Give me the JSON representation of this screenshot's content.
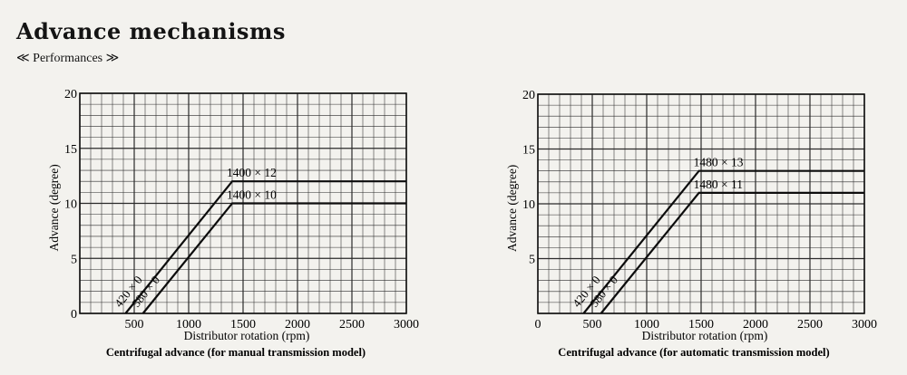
{
  "page": {
    "title": "Advance mechanisms",
    "subtitle": "≪ Performances ≫"
  },
  "chart_data": [
    {
      "type": "line",
      "caption": "Centrifugal advance (for manual transmission model)",
      "xlabel": "Distributor rotation (rpm)",
      "ylabel": "Advance (degree)",
      "xlim": [
        0,
        3000
      ],
      "ylim": [
        0,
        20
      ],
      "xticks": [
        500,
        1000,
        1500,
        2000,
        2500,
        3000
      ],
      "yticks": [
        0,
        5,
        10,
        15,
        20
      ],
      "grid": true,
      "series": [
        {
          "x": [
            420,
            1400,
            3000
          ],
          "y": [
            0,
            12,
            12
          ]
        },
        {
          "x": [
            580,
            1400,
            3000
          ],
          "y": [
            0,
            10,
            10
          ]
        }
      ],
      "annotations": [
        {
          "text": "420 × 0",
          "x": 420,
          "y": 0,
          "kind": "start"
        },
        {
          "text": "580 × 0",
          "x": 580,
          "y": 0,
          "kind": "start"
        },
        {
          "text": "1400 × 12",
          "x": 1400,
          "y": 12,
          "kind": "knee"
        },
        {
          "text": "1400 × 10",
          "x": 1400,
          "y": 10,
          "kind": "knee"
        }
      ]
    },
    {
      "type": "line",
      "caption": "Centrifugal advance (for automatic transmission model)",
      "xlabel": "Distributor rotation (rpm)",
      "ylabel": "Advance (degree)",
      "xlim": [
        0,
        3000
      ],
      "ylim": [
        0,
        20
      ],
      "xticks": [
        0,
        500,
        1000,
        1500,
        2000,
        2500,
        3000
      ],
      "yticks": [
        5,
        10,
        15,
        20
      ],
      "grid": true,
      "series": [
        {
          "x": [
            420,
            1480,
            3000
          ],
          "y": [
            0,
            13,
            13
          ]
        },
        {
          "x": [
            580,
            1480,
            3000
          ],
          "y": [
            0,
            11,
            11
          ]
        }
      ],
      "annotations": [
        {
          "text": "420 × 0",
          "x": 420,
          "y": 0,
          "kind": "start"
        },
        {
          "text": "580 × 0",
          "x": 580,
          "y": 0,
          "kind": "start"
        },
        {
          "text": "1480 × 13",
          "x": 1480,
          "y": 13,
          "kind": "knee"
        },
        {
          "text": "1480 × 11",
          "x": 1480,
          "y": 11,
          "kind": "knee"
        }
      ]
    }
  ]
}
